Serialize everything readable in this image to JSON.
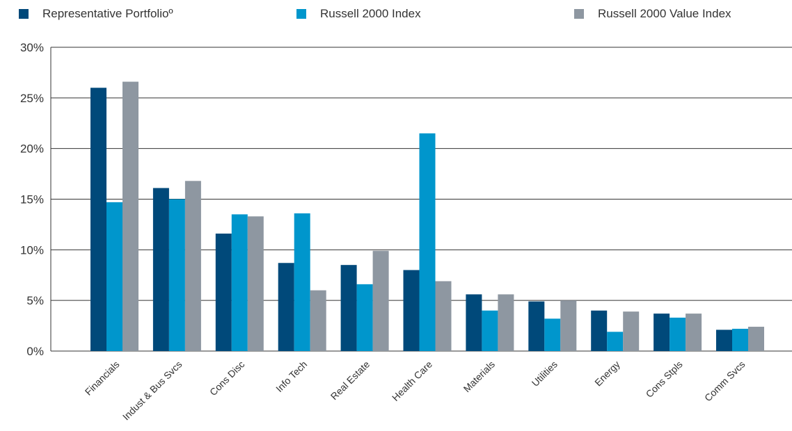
{
  "chart_data": {
    "type": "bar",
    "title": "",
    "xlabel": "",
    "ylabel": "",
    "ylim": [
      0,
      30
    ],
    "yticks": [
      "0%",
      "5%",
      "10%",
      "15%",
      "20%",
      "25%",
      "30%"
    ],
    "grid": true,
    "legend_position": "top",
    "categories": [
      "Financials",
      "Indust & Bus Svcs",
      "Cons Disc",
      "Info Tech",
      "Real Estate",
      "Health Care",
      "Materials",
      "Utilities",
      "Energy",
      "Cons Stpls",
      "Comm Svcs"
    ],
    "series": [
      {
        "name": "Representative Portfolioº",
        "color": "#00497a",
        "values": [
          26.0,
          16.1,
          11.6,
          8.7,
          8.5,
          8.0,
          5.6,
          4.9,
          4.0,
          3.7,
          2.1
        ]
      },
      {
        "name": "Russell 2000 Index",
        "color": "#0096cc",
        "values": [
          14.7,
          15.0,
          13.5,
          13.6,
          6.6,
          21.5,
          4.0,
          3.2,
          1.9,
          3.3,
          2.2
        ]
      },
      {
        "name": "Russell 2000 Value Index",
        "color": "#8e97a1",
        "values": [
          26.6,
          16.8,
          13.3,
          6.0,
          9.9,
          6.9,
          5.6,
          5.0,
          3.9,
          3.7,
          2.4
        ]
      }
    ]
  }
}
